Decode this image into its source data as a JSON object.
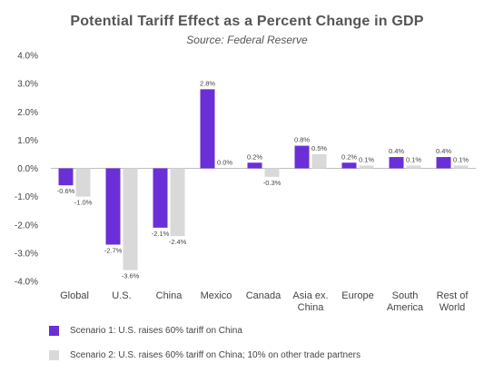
{
  "chart_data": {
    "type": "bar",
    "title": "Potential Tariff Effect as a Percent Change in GDP",
    "subtitle": "Source: Federal Reserve",
    "categories": [
      [
        "Global"
      ],
      [
        "U.S."
      ],
      [
        "China"
      ],
      [
        "Mexico"
      ],
      [
        "Canada"
      ],
      [
        "Asia ex.",
        "China"
      ],
      [
        "Europe"
      ],
      [
        "South",
        "America"
      ],
      [
        "Rest of",
        "World"
      ]
    ],
    "series": [
      {
        "name": "Scenario 1: U.S. raises 60% tariff on China",
        "color": "#6a2fd6",
        "values": [
          -0.6,
          -2.7,
          -2.1,
          2.8,
          0.2,
          0.8,
          0.2,
          0.4,
          0.4
        ],
        "labels": [
          "-0.6%",
          "-2.7%",
          "-2.1%",
          "2.8%",
          "0.2%",
          "0.8%",
          "0.2%",
          "0.4%",
          "0.4%"
        ]
      },
      {
        "name": "Scenario 2: U.S. raises 60% tariff on China; 10% on other trade partners",
        "color": "#d9d9d9",
        "values": [
          -1.0,
          -3.6,
          -2.4,
          0.0,
          -0.3,
          0.5,
          0.1,
          0.1,
          0.1
        ],
        "labels": [
          "-1.0%",
          "-3.6%",
          "-2.4%",
          "0.0%",
          "-0.3%",
          "0.5%",
          "0.1%",
          "0.1%",
          "0.1%"
        ]
      }
    ],
    "ylim": [
      -4.0,
      4.0
    ],
    "yticks": [
      4.0,
      3.0,
      2.0,
      1.0,
      0.0,
      -1.0,
      -2.0,
      -3.0,
      -4.0
    ],
    "ytick_labels": [
      "4.0%",
      "3.0%",
      "2.0%",
      "1.0%",
      "0.0%",
      "-1.0%",
      "-2.0%",
      "-3.0%",
      "-4.0%"
    ],
    "xlabel": "",
    "ylabel": "",
    "grid": false,
    "legend_position": "bottom-left"
  }
}
